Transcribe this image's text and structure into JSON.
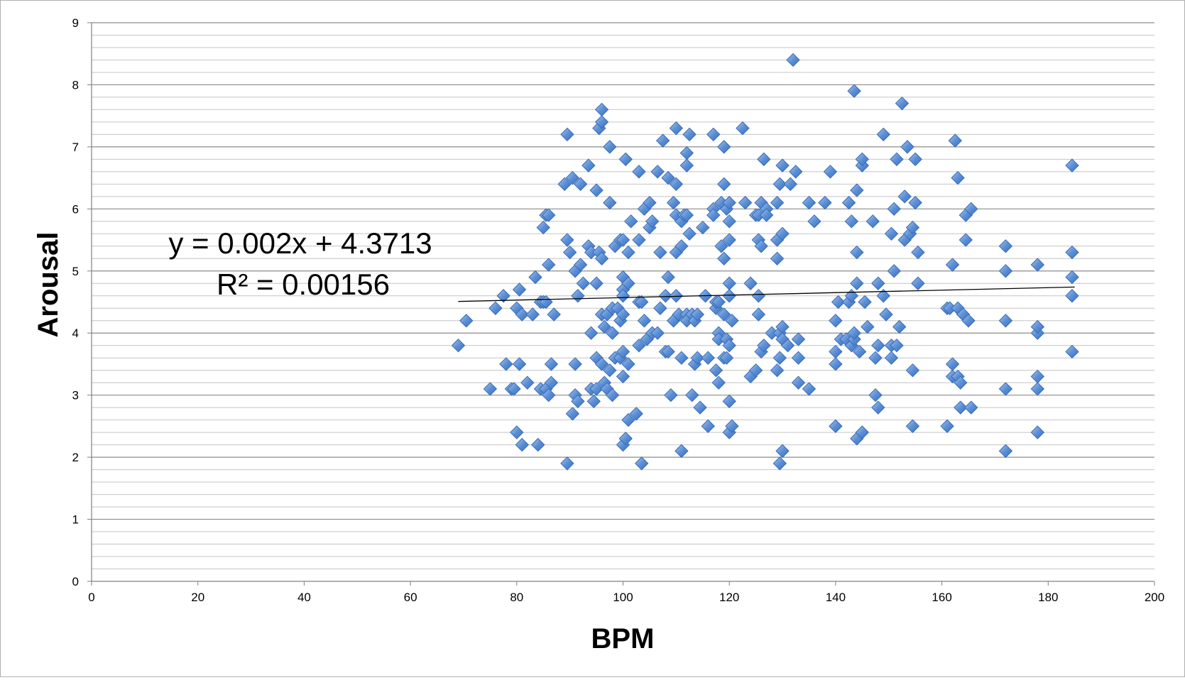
{
  "chart_data": {
    "type": "scatter",
    "xlabel": "BPM",
    "ylabel": "Arousal",
    "xlim": [
      0,
      200
    ],
    "ylim": [
      0,
      9
    ],
    "x_ticks": [
      "0",
      "20",
      "40",
      "60",
      "80",
      "100",
      "120",
      "140",
      "160",
      "180",
      "200"
    ],
    "y_ticks": [
      "0",
      "1",
      "2",
      "3",
      "4",
      "5",
      "6",
      "7",
      "8",
      "9"
    ],
    "minor_gridline_step": 0.2,
    "grid": true,
    "marker": "diamond",
    "marker_color": "#5b8fd6",
    "trendline": {
      "slope": 0.002,
      "intercept": 4.3713,
      "x_range": [
        69,
        185
      ],
      "equation_label": "y = 0.002x + 4.3713",
      "r2_label": "R² = 0.00156"
    },
    "points": [
      [
        69,
        3.8
      ],
      [
        70.5,
        4.2
      ],
      [
        75,
        3.1
      ],
      [
        76,
        4.4
      ],
      [
        77.5,
        4.6
      ],
      [
        78,
        3.5
      ],
      [
        79,
        3.1
      ],
      [
        79.5,
        3.1
      ],
      [
        80,
        2.4
      ],
      [
        80,
        4.4
      ],
      [
        80.5,
        4.7
      ],
      [
        80.5,
        3.5
      ],
      [
        81,
        2.2
      ],
      [
        81,
        4.3
      ],
      [
        82,
        3.2
      ],
      [
        83,
        4.3
      ],
      [
        83.5,
        4.9
      ],
      [
        84,
        2.2
      ],
      [
        84.5,
        3.1
      ],
      [
        84.5,
        4.5
      ],
      [
        85,
        5.7
      ],
      [
        85,
        4.5
      ],
      [
        85.5,
        5.9
      ],
      [
        85.5,
        4.5
      ],
      [
        85.5,
        3.1
      ],
      [
        86,
        3.0
      ],
      [
        86,
        5.1
      ],
      [
        86,
        5.9
      ],
      [
        86.5,
        3.2
      ],
      [
        86.5,
        3.5
      ],
      [
        87,
        4.3
      ],
      [
        89,
        6.4
      ],
      [
        89.5,
        5.5
      ],
      [
        90,
        5.3
      ],
      [
        89.5,
        7.2
      ],
      [
        89.5,
        1.9
      ],
      [
        90.5,
        6.5
      ],
      [
        90.5,
        2.7
      ],
      [
        91,
        3.5
      ],
      [
        91,
        5.0
      ],
      [
        91,
        3.0
      ],
      [
        91.5,
        4.6
      ],
      [
        91.5,
        2.9
      ],
      [
        92,
        5.1
      ],
      [
        92,
        6.4
      ],
      [
        92.5,
        4.8
      ],
      [
        93.5,
        6.7
      ],
      [
        93.5,
        5.4
      ],
      [
        94,
        4.0
      ],
      [
        94,
        5.3
      ],
      [
        94,
        3.1
      ],
      [
        94.5,
        2.9
      ],
      [
        95,
        3.6
      ],
      [
        95,
        3.1
      ],
      [
        95,
        4.8
      ],
      [
        95,
        6.3
      ],
      [
        95.5,
        7.3
      ],
      [
        95.5,
        5.3
      ],
      [
        96,
        7.4
      ],
      [
        96,
        7.6
      ],
      [
        96,
        3.5
      ],
      [
        96,
        4.3
      ],
      [
        96,
        5.2
      ],
      [
        96.5,
        3.2
      ],
      [
        96.5,
        4.1
      ],
      [
        97,
        4.3
      ],
      [
        97,
        3.1
      ],
      [
        97.5,
        3.4
      ],
      [
        97.5,
        6.1
      ],
      [
        97.5,
        7.0
      ],
      [
        98,
        3.0
      ],
      [
        98,
        4.4
      ],
      [
        98,
        4.0
      ],
      [
        98.5,
        5.4
      ],
      [
        98.5,
        3.6
      ],
      [
        99,
        4.4
      ],
      [
        99.5,
        5.5
      ],
      [
        99.5,
        3.6
      ],
      [
        99.5,
        4.2
      ],
      [
        100,
        4.9
      ],
      [
        100,
        4.7
      ],
      [
        100,
        4.3
      ],
      [
        100,
        3.7
      ],
      [
        100,
        3.3
      ],
      [
        100,
        2.2
      ],
      [
        100,
        5.5
      ],
      [
        100,
        4.6
      ],
      [
        100.5,
        6.8
      ],
      [
        100.5,
        2.3
      ],
      [
        101,
        5.3
      ],
      [
        101,
        3.5
      ],
      [
        101,
        4.8
      ],
      [
        101,
        2.6
      ],
      [
        101.5,
        5.8
      ],
      [
        102.5,
        2.7
      ],
      [
        103,
        4.5
      ],
      [
        103,
        6.6
      ],
      [
        103,
        3.8
      ],
      [
        103,
        5.5
      ],
      [
        103.5,
        4.5
      ],
      [
        103.5,
        1.9
      ],
      [
        104,
        6.0
      ],
      [
        104,
        4.2
      ],
      [
        104.5,
        3.9
      ],
      [
        105,
        5.7
      ],
      [
        105,
        6.1
      ],
      [
        105.5,
        4.0
      ],
      [
        105.5,
        5.8
      ],
      [
        106.5,
        6.6
      ],
      [
        106.5,
        4.0
      ],
      [
        107,
        4.4
      ],
      [
        107,
        5.3
      ],
      [
        107.5,
        7.1
      ],
      [
        108,
        4.6
      ],
      [
        108,
        3.7
      ],
      [
        108.5,
        6.5
      ],
      [
        108.5,
        4.9
      ],
      [
        108.5,
        3.7
      ],
      [
        109,
        3.0
      ],
      [
        109.5,
        6.1
      ],
      [
        109.5,
        4.2
      ],
      [
        110,
        5.9
      ],
      [
        110,
        7.3
      ],
      [
        110,
        6.4
      ],
      [
        110,
        5.3
      ],
      [
        110,
        4.6
      ],
      [
        110.5,
        4.3
      ],
      [
        111,
        2.1
      ],
      [
        111,
        3.6
      ],
      [
        111,
        5.4
      ],
      [
        111,
        5.8
      ],
      [
        111.5,
        5.9
      ],
      [
        112,
        4.3
      ],
      [
        112,
        4.2
      ],
      [
        112,
        6.7
      ],
      [
        112,
        6.9
      ],
      [
        112,
        5.9
      ],
      [
        112.5,
        5.6
      ],
      [
        112.5,
        7.2
      ],
      [
        113,
        3.0
      ],
      [
        113,
        4.3
      ],
      [
        113.5,
        3.5
      ],
      [
        113.5,
        4.2
      ],
      [
        114,
        3.6
      ],
      [
        114,
        4.3
      ],
      [
        114.5,
        2.8
      ],
      [
        115,
        5.7
      ],
      [
        115.5,
        4.6
      ],
      [
        116,
        3.6
      ],
      [
        116,
        2.5
      ],
      [
        117,
        7.2
      ],
      [
        117,
        6.0
      ],
      [
        117,
        5.9
      ],
      [
        117.5,
        4.4
      ],
      [
        117.5,
        4.5
      ],
      [
        117.5,
        3.4
      ],
      [
        118,
        3.2
      ],
      [
        118,
        4.0
      ],
      [
        118,
        3.9
      ],
      [
        118,
        4.5
      ],
      [
        118.5,
        6.1
      ],
      [
        118.5,
        5.4
      ],
      [
        119,
        3.6
      ],
      [
        119,
        5.2
      ],
      [
        119,
        7.0
      ],
      [
        119,
        6.4
      ],
      [
        119,
        4.3
      ],
      [
        119.5,
        3.9
      ],
      [
        119.5,
        3.6
      ],
      [
        119.5,
        6.0
      ],
      [
        120,
        5.5
      ],
      [
        120,
        6.1
      ],
      [
        120,
        4.8
      ],
      [
        120,
        4.6
      ],
      [
        120,
        5.8
      ],
      [
        120,
        2.9
      ],
      [
        120,
        2.4
      ],
      [
        120,
        3.8
      ],
      [
        120.5,
        4.2
      ],
      [
        120.5,
        2.5
      ],
      [
        122.5,
        7.3
      ],
      [
        123,
        6.1
      ],
      [
        124,
        3.3
      ],
      [
        124,
        4.8
      ],
      [
        125,
        5.9
      ],
      [
        125,
        3.4
      ],
      [
        125.5,
        4.6
      ],
      [
        125.5,
        4.3
      ],
      [
        125.5,
        5.5
      ],
      [
        125.5,
        5.9
      ],
      [
        126,
        6.1
      ],
      [
        126,
        5.4
      ],
      [
        126,
        3.7
      ],
      [
        126.5,
        6.8
      ],
      [
        126.5,
        3.8
      ],
      [
        127,
        6.0
      ],
      [
        127,
        5.9
      ],
      [
        128,
        4.0
      ],
      [
        129,
        6.1
      ],
      [
        129,
        5.5
      ],
      [
        129,
        3.4
      ],
      [
        129,
        5.2
      ],
      [
        129.5,
        1.9
      ],
      [
        129.5,
        6.4
      ],
      [
        129.5,
        3.6
      ],
      [
        129.5,
        4.0
      ],
      [
        130,
        4.1
      ],
      [
        130,
        3.9
      ],
      [
        130,
        6.7
      ],
      [
        130,
        2.1
      ],
      [
        130,
        5.6
      ],
      [
        131,
        3.8
      ],
      [
        131.5,
        6.4
      ],
      [
        132,
        8.4
      ],
      [
        132.5,
        6.6
      ],
      [
        133,
        3.2
      ],
      [
        133,
        3.9
      ],
      [
        133,
        3.6
      ],
      [
        135,
        6.1
      ],
      [
        135,
        3.1
      ],
      [
        136,
        5.8
      ],
      [
        138,
        6.1
      ],
      [
        139,
        6.6
      ],
      [
        140,
        3.7
      ],
      [
        140,
        3.5
      ],
      [
        140,
        2.5
      ],
      [
        140,
        4.2
      ],
      [
        140.5,
        4.5
      ],
      [
        141,
        3.9
      ],
      [
        142,
        3.9
      ],
      [
        142.5,
        6.1
      ],
      [
        142.5,
        4.5
      ],
      [
        143,
        3.8
      ],
      [
        143,
        5.8
      ],
      [
        143,
        4.6
      ],
      [
        143.5,
        7.9
      ],
      [
        143.5,
        3.9
      ],
      [
        143.5,
        4.0
      ],
      [
        144,
        4.8
      ],
      [
        144,
        6.3
      ],
      [
        144,
        2.3
      ],
      [
        144,
        5.3
      ],
      [
        144.5,
        3.7
      ],
      [
        145,
        6.7
      ],
      [
        145,
        6.8
      ],
      [
        145,
        2.4
      ],
      [
        145.5,
        4.5
      ],
      [
        146,
        4.1
      ],
      [
        147,
        5.8
      ],
      [
        147.5,
        3.6
      ],
      [
        147.5,
        3.0
      ],
      [
        148,
        4.8
      ],
      [
        148,
        3.8
      ],
      [
        148,
        2.8
      ],
      [
        149,
        4.6
      ],
      [
        149,
        7.2
      ],
      [
        149.5,
        4.3
      ],
      [
        150.5,
        3.8
      ],
      [
        150.5,
        5.6
      ],
      [
        150.5,
        3.6
      ],
      [
        151,
        6.0
      ],
      [
        151,
        5.0
      ],
      [
        151.5,
        3.8
      ],
      [
        151.5,
        6.8
      ],
      [
        152,
        4.1
      ],
      [
        152.5,
        7.7
      ],
      [
        153,
        5.5
      ],
      [
        153,
        6.2
      ],
      [
        153.5,
        7.0
      ],
      [
        154,
        5.6
      ],
      [
        154.5,
        2.5
      ],
      [
        154.5,
        5.7
      ],
      [
        154.5,
        3.4
      ],
      [
        155,
        6.8
      ],
      [
        155,
        6.1
      ],
      [
        155.5,
        5.3
      ],
      [
        155.5,
        4.8
      ],
      [
        161,
        2.5
      ],
      [
        161,
        4.4
      ],
      [
        161.5,
        4.4
      ],
      [
        162,
        3.3
      ],
      [
        162,
        5.1
      ],
      [
        162,
        3.5
      ],
      [
        162.5,
        7.1
      ],
      [
        163,
        3.3
      ],
      [
        163,
        4.4
      ],
      [
        163,
        6.5
      ],
      [
        163.5,
        3.2
      ],
      [
        163.5,
        2.8
      ],
      [
        164,
        4.3
      ],
      [
        164.5,
        5.9
      ],
      [
        164.5,
        5.5
      ],
      [
        165,
        4.2
      ],
      [
        165.5,
        6.0
      ],
      [
        165.5,
        2.8
      ],
      [
        172,
        2.1
      ],
      [
        172,
        5.0
      ],
      [
        172,
        4.2
      ],
      [
        172,
        5.4
      ],
      [
        172,
        3.1
      ],
      [
        178,
        4.0
      ],
      [
        178,
        4.1
      ],
      [
        178,
        3.3
      ],
      [
        178,
        3.1
      ],
      [
        178,
        2.4
      ],
      [
        178,
        5.1
      ],
      [
        184.5,
        6.7
      ],
      [
        184.5,
        5.3
      ],
      [
        184.5,
        4.9
      ],
      [
        184.5,
        4.6
      ],
      [
        184.5,
        3.7
      ]
    ]
  }
}
